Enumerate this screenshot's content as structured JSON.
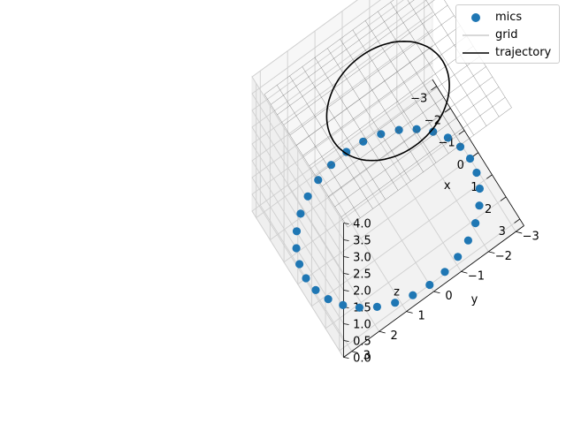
{
  "chart_data": {
    "type": "scatter3d",
    "xlabel": "x",
    "ylabel": "y",
    "zlabel": "z",
    "xlim": [
      -3.3,
      3.3
    ],
    "ylim": [
      -3.3,
      3.3
    ],
    "zlim": [
      0,
      4
    ],
    "xticks": [
      -3,
      -2,
      -1,
      0,
      1,
      2,
      3
    ],
    "yticks": [
      -3,
      -2,
      -1,
      0,
      1,
      2,
      3
    ],
    "zticks": [
      0.0,
      0.5,
      1.0,
      1.5,
      2.0,
      2.5,
      3.0,
      3.5,
      4.0
    ],
    "xtick_labels": [
      "−3",
      "−2",
      "−1",
      "0",
      "1",
      "2",
      "3"
    ],
    "ytick_labels": [
      "−3",
      "−2",
      "−1",
      "0",
      "1",
      "2",
      "3"
    ],
    "ztick_labels": [
      "0.0",
      "0.5",
      "1.0",
      "1.5",
      "2.0",
      "2.5",
      "3.0",
      "3.5",
      "4.0"
    ],
    "grid": true,
    "legend_position": "top-right",
    "legend": [
      {
        "name": "mics",
        "kind": "marker",
        "color": "#1f77b4"
      },
      {
        "name": "grid",
        "kind": "line",
        "color": "#cccccc"
      },
      {
        "name": "trajectory",
        "kind": "line",
        "color": "#000000"
      }
    ],
    "series": [
      {
        "name": "mics",
        "type": "scatter",
        "color": "#1f77b4",
        "ring": {
          "count": 32,
          "radius": 3.0,
          "z": 0.0
        }
      },
      {
        "name": "grid",
        "type": "surface_grid",
        "color": "#cccccc",
        "x_range": [
          -3.0,
          3.0
        ],
        "y_range": [
          -3.0,
          3.0
        ],
        "z": 3.5,
        "divisions": 13
      },
      {
        "name": "trajectory",
        "type": "line",
        "color": "#000000",
        "circle": {
          "radius": 2.0,
          "z": 3.5
        }
      }
    ]
  }
}
